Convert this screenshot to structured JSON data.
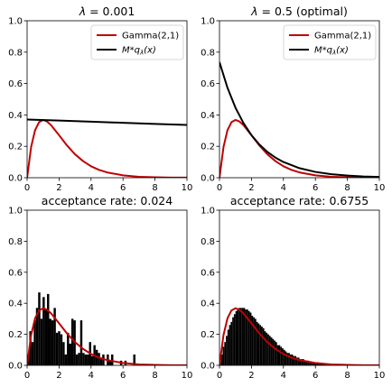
{
  "chart_data": [
    {
      "type": "line",
      "title": "λ = 0.001",
      "xlabel": "",
      "ylabel": "",
      "xlim": [
        0,
        10
      ],
      "ylim": [
        0,
        1.0
      ],
      "xticks": [
        "0",
        "2",
        "4",
        "6",
        "8",
        "10"
      ],
      "yticks": [
        "0.0",
        "0.2",
        "0.4",
        "0.6",
        "0.8",
        "1.0"
      ],
      "grid": false,
      "legend_position": "top-right",
      "series": [
        {
          "name": "Gamma(2,1)",
          "color": "#c00000",
          "x": [
            0,
            0.25,
            0.5,
            0.75,
            1,
            1.25,
            1.5,
            2,
            2.5,
            3,
            3.5,
            4,
            4.5,
            5,
            6,
            7,
            8,
            9,
            10
          ],
          "y": [
            0,
            0.195,
            0.303,
            0.354,
            0.368,
            0.358,
            0.335,
            0.271,
            0.205,
            0.149,
            0.106,
            0.073,
            0.05,
            0.034,
            0.015,
            0.006,
            0.003,
            0.001,
            0.0005
          ]
        },
        {
          "name": "M * qλ(x)",
          "color": "#000000",
          "x": [
            0,
            2,
            4,
            6,
            8,
            10
          ],
          "y": [
            0.371,
            0.364,
            0.357,
            0.35,
            0.343,
            0.336
          ]
        }
      ]
    },
    {
      "type": "line",
      "title": "λ = 0.5 (optimal)",
      "xlabel": "",
      "ylabel": "",
      "xlim": [
        0,
        10
      ],
      "ylim": [
        0,
        1.0
      ],
      "xticks": [
        "0",
        "2",
        "4",
        "6",
        "8",
        "10"
      ],
      "yticks": [
        "0.0",
        "0.2",
        "0.4",
        "0.6",
        "0.8",
        "1.0"
      ],
      "grid": false,
      "legend_position": "top-right",
      "series": [
        {
          "name": "Gamma(2,1)",
          "color": "#c00000",
          "x": [
            0,
            0.25,
            0.5,
            0.75,
            1,
            1.25,
            1.5,
            2,
            2.5,
            3,
            3.5,
            4,
            4.5,
            5,
            6,
            7,
            8,
            9,
            10
          ],
          "y": [
            0,
            0.195,
            0.303,
            0.354,
            0.368,
            0.358,
            0.335,
            0.271,
            0.205,
            0.149,
            0.106,
            0.073,
            0.05,
            0.034,
            0.015,
            0.006,
            0.003,
            0.001,
            0.0005
          ]
        },
        {
          "name": "M * qλ(x)",
          "color": "#000000",
          "x": [
            0,
            0.5,
            1,
            1.5,
            2,
            2.5,
            3,
            3.5,
            4,
            5,
            6,
            7,
            8,
            9,
            10
          ],
          "y": [
            0.736,
            0.573,
            0.446,
            0.348,
            0.271,
            0.211,
            0.164,
            0.128,
            0.1,
            0.061,
            0.037,
            0.022,
            0.014,
            0.008,
            0.005
          ]
        }
      ]
    },
    {
      "type": "bar",
      "title": "acceptance rate: 0.024",
      "xlabel": "",
      "ylabel": "",
      "xlim": [
        0,
        10
      ],
      "ylim": [
        0,
        1.0
      ],
      "xticks": [
        "0",
        "2",
        "4",
        "6",
        "8",
        "10"
      ],
      "yticks": [
        "0.0",
        "0.2",
        "0.4",
        "0.6",
        "0.8",
        "1.0"
      ],
      "grid": false,
      "histogram": {
        "color": "#000000",
        "bin_start": 0,
        "bin_width": 0.1383,
        "values": [
          0.07,
          0.22,
          0.15,
          0.29,
          0.37,
          0.47,
          0.3,
          0.44,
          0.36,
          0.46,
          0.3,
          0.29,
          0.37,
          0.21,
          0.22,
          0.2,
          0.15,
          0.07,
          0.21,
          0.14,
          0.3,
          0.29,
          0.07,
          0.08,
          0.29,
          0.08,
          0.07,
          0.07,
          0.15,
          0.06,
          0.13,
          0.1,
          0.08,
          0.04,
          0.07,
          0.0,
          0.07,
          0.03,
          0.07,
          0.0,
          0.0,
          0.0,
          0.03,
          0.0,
          0.03,
          0.0,
          0.0,
          0.0,
          0.07,
          0.0,
          0.0
        ]
      },
      "series": [
        {
          "name": "Gamma(2,1)",
          "color": "#c00000",
          "x": [
            0,
            0.25,
            0.5,
            0.75,
            1,
            1.25,
            1.5,
            2,
            2.5,
            3,
            3.5,
            4,
            4.5,
            5,
            6,
            7,
            8,
            9,
            10
          ],
          "y": [
            0,
            0.195,
            0.303,
            0.354,
            0.368,
            0.358,
            0.335,
            0.271,
            0.205,
            0.149,
            0.106,
            0.073,
            0.05,
            0.034,
            0.015,
            0.006,
            0.003,
            0.001,
            0.0005
          ]
        }
      ]
    },
    {
      "type": "bar",
      "title": "acceptance rate: 0.6755",
      "xlabel": "",
      "ylabel": "",
      "xlim": [
        0,
        10
      ],
      "ylim": [
        0,
        1.0
      ],
      "xticks": [
        "0",
        "2",
        "4",
        "6",
        "8",
        "10"
      ],
      "yticks": [
        "0.0",
        "0.2",
        "0.4",
        "0.6",
        "0.8",
        "1.0"
      ],
      "grid": false,
      "histogram": {
        "color": "#000000",
        "bin_start": 0,
        "bin_width": 0.1,
        "values": [
          0.02,
          0.07,
          0.12,
          0.15,
          0.19,
          0.23,
          0.26,
          0.28,
          0.31,
          0.33,
          0.35,
          0.36,
          0.37,
          0.37,
          0.37,
          0.37,
          0.36,
          0.36,
          0.35,
          0.34,
          0.32,
          0.31,
          0.3,
          0.28,
          0.27,
          0.26,
          0.25,
          0.24,
          0.22,
          0.21,
          0.2,
          0.19,
          0.18,
          0.17,
          0.16,
          0.15,
          0.13,
          0.13,
          0.12,
          0.11,
          0.1,
          0.09,
          0.08,
          0.08,
          0.07,
          0.07,
          0.06,
          0.06,
          0.05,
          0.05,
          0.04,
          0.04,
          0.04,
          0.03,
          0.03,
          0.03,
          0.02,
          0.02,
          0.02,
          0.02,
          0.02,
          0.02,
          0.01,
          0.01,
          0.01,
          0.01,
          0.01,
          0.01,
          0.01,
          0.01,
          0.005,
          0.005,
          0.005,
          0.005,
          0.005,
          0.003,
          0.003,
          0.003,
          0.003,
          0.003,
          0.002,
          0.002,
          0.002,
          0.002,
          0.002,
          0.001,
          0.001,
          0.001,
          0.001,
          0.001
        ]
      },
      "series": [
        {
          "name": "Gamma(2,1)",
          "color": "#c00000",
          "x": [
            0,
            0.25,
            0.5,
            0.75,
            1,
            1.25,
            1.5,
            2,
            2.5,
            3,
            3.5,
            4,
            4.5,
            5,
            6,
            7,
            8,
            9,
            10
          ],
          "y": [
            0,
            0.195,
            0.303,
            0.354,
            0.368,
            0.358,
            0.335,
            0.271,
            0.205,
            0.149,
            0.106,
            0.073,
            0.05,
            0.034,
            0.015,
            0.006,
            0.003,
            0.001,
            0.0005
          ]
        }
      ]
    }
  ]
}
